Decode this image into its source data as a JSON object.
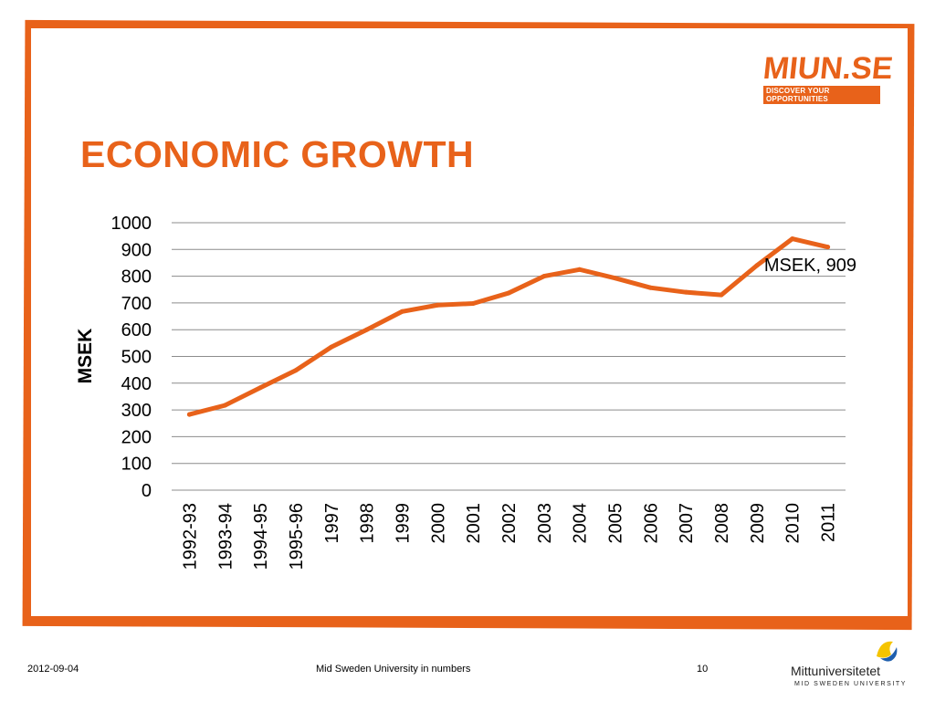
{
  "logo": {
    "main": "MIUN.SE",
    "tagline": "DISCOVER YOUR OPPORTUNITIES"
  },
  "slide": {
    "title": "ECONOMIC GROWTH"
  },
  "colors": {
    "accent": "#e8621a",
    "grid": "#8c8c8c",
    "text": "#000000"
  },
  "chart_data": {
    "type": "line",
    "ylabel": "MSEK",
    "ylim": [
      0,
      1000
    ],
    "yticks": [
      0,
      100,
      200,
      300,
      400,
      500,
      600,
      700,
      800,
      900,
      1000
    ],
    "grid": true,
    "categories": [
      "1992-93",
      "1993-94",
      "1994-95",
      "1995-96",
      "1997",
      "1998",
      "1999",
      "2000",
      "2001",
      "2002",
      "2003",
      "2004",
      "2005",
      "2006",
      "2007",
      "2008",
      "2009",
      "2010",
      "2011"
    ],
    "series": [
      {
        "values": [
          283,
          317,
          383,
          448,
          535,
          600,
          668,
          692,
          698,
          737,
          800,
          825,
          793,
          757,
          740,
          730,
          840,
          940,
          909
        ]
      }
    ],
    "annotations": [
      {
        "text": "MSEK, 909"
      }
    ]
  },
  "footer": {
    "date": "2012-09-04",
    "center": "Mid Sweden University in numbers",
    "page": "10",
    "university": "Mittuniversitetet",
    "university_sub": "MID SWEDEN UNIVERSITY"
  }
}
